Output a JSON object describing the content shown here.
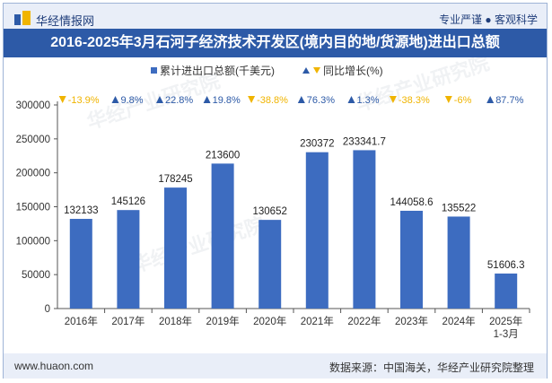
{
  "header": {
    "site_name": "华经情报网",
    "tagline": "专业严谨 ● 客观科学",
    "title": "2016-2025年3月石河子经济技术开发区(境内目的地/货源地)进出口总额"
  },
  "footer": {
    "url": "www.huaon.com",
    "source": "数据来源：中国海关，华经产业研究院整理"
  },
  "colors": {
    "bar": "#3d6cc0",
    "up": "#2d5aa7",
    "down": "#f0b400",
    "title_bg": "#2d5aa7",
    "band_bg": "#e9eef8"
  },
  "chart_data": {
    "type": "bar",
    "title": "2016-2025年3月石河子经济技术开发区(境内目的地/货源地)进出口总额",
    "legend": [
      "累计进出口总额(千美元)",
      "同比增长(%)"
    ],
    "legend_placement": "top",
    "categories": [
      "2016年",
      "2017年",
      "2018年",
      "2019年",
      "2020年",
      "2021年",
      "2022年",
      "2023年",
      "2024年",
      "2025年\n1-3月"
    ],
    "values": [
      132133,
      145126,
      178245,
      213600,
      130652,
      230372,
      233341.7,
      144058.6,
      135522,
      51606.3
    ],
    "value_labels": [
      "132133",
      "145126",
      "178245",
      "213600",
      "130652",
      "230372",
      "233341.7",
      "144058.6",
      "135522",
      "51606.3"
    ],
    "growth": [
      -13.9,
      9.8,
      22.8,
      19.8,
      -38.8,
      76.3,
      1.3,
      -38.3,
      -6,
      87.7
    ],
    "growth_labels": [
      "-13.9%",
      "9.8%",
      "22.8%",
      "19.8%",
      "-38.8%",
      "76.3%",
      "1.3%",
      "-38.3%",
      "-6%",
      "87.7%"
    ],
    "ylim": [
      0,
      300000
    ],
    "yticks": [
      0,
      50000,
      100000,
      150000,
      200000,
      250000,
      300000
    ],
    "ytick_labels": [
      "0",
      "50000",
      "100000",
      "150000",
      "200000",
      "250000",
      "300000"
    ],
    "xlabel": "",
    "ylabel": ""
  }
}
